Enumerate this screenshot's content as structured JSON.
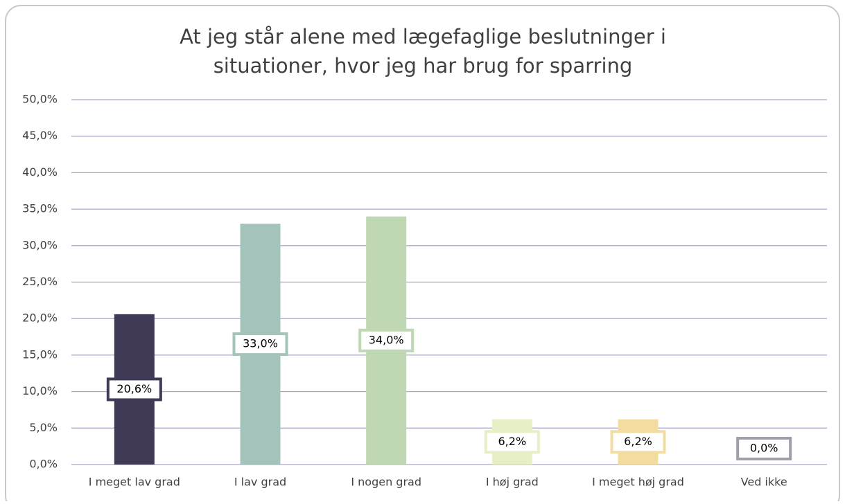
{
  "chart_data": {
    "type": "bar",
    "title": [
      "At jeg står alene med lægefaglige beslutninger i",
      "situationer, hvor jeg har brug for sparring"
    ],
    "categories": [
      "I meget lav grad",
      "I lav grad",
      "I nogen grad",
      "I høj grad",
      "I meget høj grad",
      "Ved ikke"
    ],
    "values": [
      20.6,
      33.0,
      34.0,
      6.2,
      6.2,
      0.0
    ],
    "value_labels": [
      "20,6%",
      "33,0%",
      "34,0%",
      "6,2%",
      "6,2%",
      "0,0%"
    ],
    "colors": [
      "#403a56",
      "#a3c3bb",
      "#c0d7b4",
      "#e7efc7",
      "#f2dca0",
      "#a39eab"
    ],
    "ylim": [
      0,
      50
    ],
    "yticks": [
      {
        "value": 0,
        "label": "0,0%"
      },
      {
        "value": 5,
        "label": "5,0%"
      },
      {
        "value": 10,
        "label": "10,0%"
      },
      {
        "value": 15,
        "label": "15,0%"
      },
      {
        "value": 20,
        "label": "20,0%"
      },
      {
        "value": 25,
        "label": "25,0%"
      },
      {
        "value": 30,
        "label": "30,0%"
      },
      {
        "value": 35,
        "label": "35,0%"
      },
      {
        "value": 40,
        "label": "40,0%"
      },
      {
        "value": 45,
        "label": "45,0%"
      },
      {
        "value": 50,
        "label": "50,0%"
      }
    ],
    "grid": true
  }
}
